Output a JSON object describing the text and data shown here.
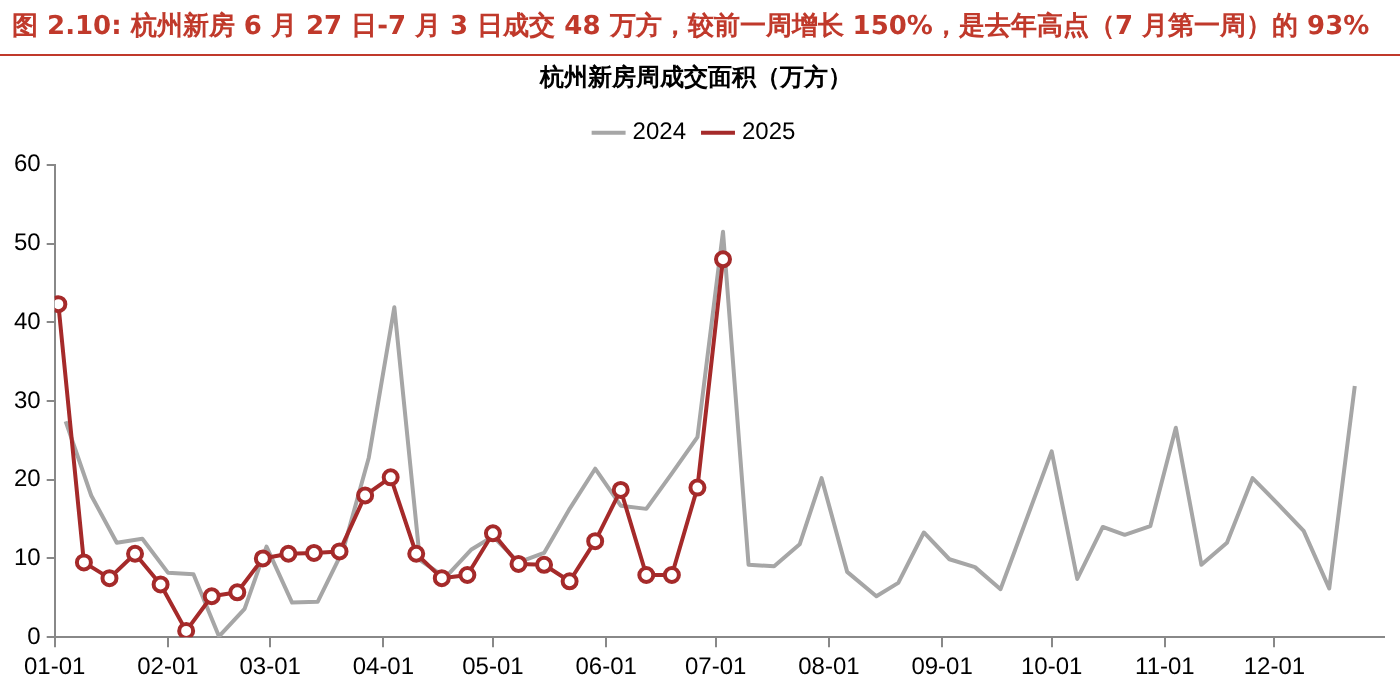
{
  "chart_data": {
    "type": "line",
    "title": "图 2.10: 杭州新房 6 月 27 日-7 月 3 日成交 48 万方，较前一周增长 150%，是去年高点（7 月第一周）的 93%",
    "subtitle": "杭州新房周成交面积（万方）",
    "xlim": [
      "--01-01",
      "--12-31"
    ],
    "xticks": [
      {
        "value": "--01-01",
        "label": "01-01"
      },
      {
        "value": "--02-01",
        "label": "02-01"
      },
      {
        "value": "--03-01",
        "label": "03-01"
      },
      {
        "value": "--04-01",
        "label": "04-01"
      },
      {
        "value": "--05-01",
        "label": "05-01"
      },
      {
        "value": "--06-01",
        "label": "06-01"
      },
      {
        "value": "--07-01",
        "label": "07-01"
      },
      {
        "value": "--08-01",
        "label": "08-01"
      },
      {
        "value": "--09-01",
        "label": "09-01"
      },
      {
        "value": "--10-01",
        "label": "10-01"
      },
      {
        "value": "--11-01",
        "label": "11-01"
      },
      {
        "value": "--12-01",
        "label": "12-01"
      }
    ],
    "ylim": [
      0,
      60
    ],
    "yticks": [
      0,
      10,
      20,
      30,
      40,
      50,
      60
    ],
    "grid": false,
    "legend": "top",
    "series": [
      {
        "name": "2024",
        "color": "#a6a6a6",
        "marker": "none",
        "x": [
          "--01-04",
          "--01-11",
          "--01-18",
          "--01-25",
          "--02-01",
          "--02-08",
          "--02-15",
          "--02-22",
          "--02-28",
          "--03-07",
          "--03-14",
          "--03-21",
          "--03-28",
          "--04-04",
          "--04-11",
          "--04-18",
          "--04-25",
          "--05-01",
          "--05-08",
          "--05-15",
          "--05-22",
          "--05-29",
          "--06-05",
          "--06-12",
          "--06-19",
          "--06-26",
          "--07-03",
          "--07-10",
          "--07-17",
          "--07-24",
          "--07-30",
          "--08-06",
          "--08-14",
          "--08-20",
          "--08-27",
          "--09-03",
          "--09-10",
          "--09-17",
          "--10-01",
          "--10-08",
          "--10-15",
          "--10-21",
          "--10-28",
          "--11-04",
          "--11-11",
          "--11-18",
          "--11-25",
          "--12-02",
          "--12-09",
          "--12-16",
          "--12-23"
        ],
        "values": [
          27.4,
          18.0,
          12.0,
          12.5,
          8.2,
          8.0,
          0.1,
          3.6,
          11.5,
          4.4,
          4.5,
          11.1,
          22.8,
          41.9,
          9.8,
          7.6,
          11.1,
          12.8,
          9.5,
          10.7,
          16.3,
          21.4,
          16.7,
          16.3,
          20.8,
          25.4,
          51.5,
          9.2,
          9.0,
          11.8,
          20.2,
          8.3,
          5.2,
          6.9,
          13.3,
          9.9,
          8.9,
          6.1,
          23.6,
          7.4,
          14.0,
          13.0,
          14.1,
          26.6,
          9.2,
          12.0,
          20.2,
          16.9,
          13.5,
          6.2,
          31.9
        ]
      },
      {
        "name": "2025",
        "color": "#a52a2a",
        "marker": "circle",
        "x": [
          "--01-02",
          "--01-09",
          "--01-16",
          "--01-23",
          "--01-30",
          "--02-06",
          "--02-13",
          "--02-20",
          "--02-27",
          "--03-06",
          "--03-13",
          "--03-20",
          "--03-27",
          "--04-03",
          "--04-10",
          "--04-17",
          "--04-24",
          "--05-01",
          "--05-08",
          "--05-15",
          "--05-22",
          "--05-29",
          "--06-05",
          "--06-12",
          "--06-19",
          "--06-26",
          "--07-03"
        ],
        "values": [
          42.3,
          9.5,
          7.5,
          10.6,
          6.7,
          0.8,
          5.2,
          5.7,
          10.0,
          10.6,
          10.7,
          10.9,
          18.0,
          20.3,
          10.6,
          7.5,
          7.9,
          13.2,
          9.3,
          9.2,
          7.1,
          12.2,
          18.7,
          7.9,
          7.9,
          19.0,
          48
        ]
      }
    ]
  }
}
